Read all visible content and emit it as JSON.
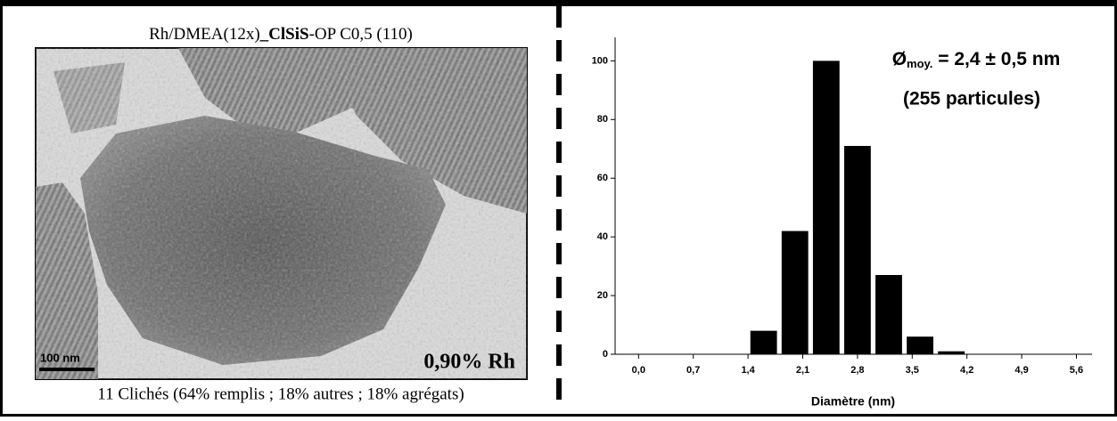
{
  "image_panel": {
    "title_parts": [
      "Rh/DMEA(12x)",
      "_ClSiS",
      "-OP C0,5 (110)"
    ],
    "scale_bar": "100 nm",
    "label": "0,90% Rh",
    "caption": "11 Clichés (64% remplis ; 18% autres ; 18% agrégats)"
  },
  "chart_data": {
    "type": "bar",
    "xlabel": "Diamètre (nm)",
    "annotation_parts": [
      "Ø",
      "moy.",
      " = 2,4 ± 0,5 nm"
    ],
    "annotation2": "(255 particules)",
    "x": [
      1.6,
      2.0,
      2.4,
      2.8,
      3.2,
      3.6,
      4.0
    ],
    "values": [
      8,
      42,
      100,
      71,
      27,
      6,
      1
    ],
    "color": "#000000",
    "xlim": [
      -0.3,
      5.8
    ],
    "ylim": [
      0,
      108
    ],
    "xticks": [
      {
        "value": 0,
        "label": "0,0"
      },
      {
        "value": 0.7,
        "label": "0,7"
      },
      {
        "value": 1.4,
        "label": "1,4"
      },
      {
        "value": 2.1,
        "label": "2,1"
      },
      {
        "value": 2.8,
        "label": "2,8"
      },
      {
        "value": 3.5,
        "label": "3,5"
      },
      {
        "value": 4.2,
        "label": "4,2"
      },
      {
        "value": 4.9,
        "label": "4,9"
      },
      {
        "value": 5.6,
        "label": "5,6"
      }
    ],
    "yticks": [
      0,
      20,
      40,
      60,
      80,
      100
    ]
  }
}
